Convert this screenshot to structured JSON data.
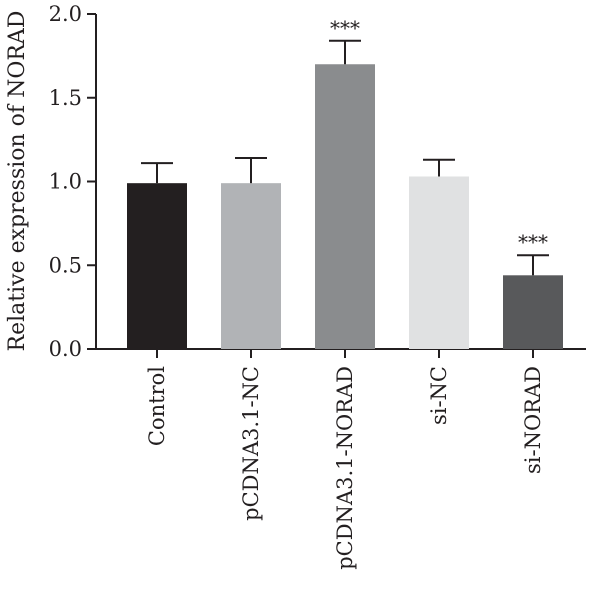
{
  "chart_data": {
    "type": "bar",
    "ylabel": "Relative expression of NORAD",
    "ylim": [
      0,
      2.0
    ],
    "yticks": [
      "0.0",
      "0.5",
      "1.0",
      "1.5",
      "2.0"
    ],
    "categories": [
      "Control",
      "pCDNA3.1-NC",
      "pCDNA3.1-NORAD",
      "si-NC",
      "si-NORAD"
    ],
    "values": [
      0.99,
      0.99,
      1.7,
      1.03,
      0.44
    ],
    "errors": [
      0.12,
      0.15,
      0.14,
      0.1,
      0.12
    ],
    "annotations": [
      "",
      "",
      "***",
      "",
      "***"
    ],
    "colors": [
      "#231f20",
      "#b1b3b6",
      "#8a8c8e",
      "#e0e1e2",
      "#58595b"
    ]
  }
}
